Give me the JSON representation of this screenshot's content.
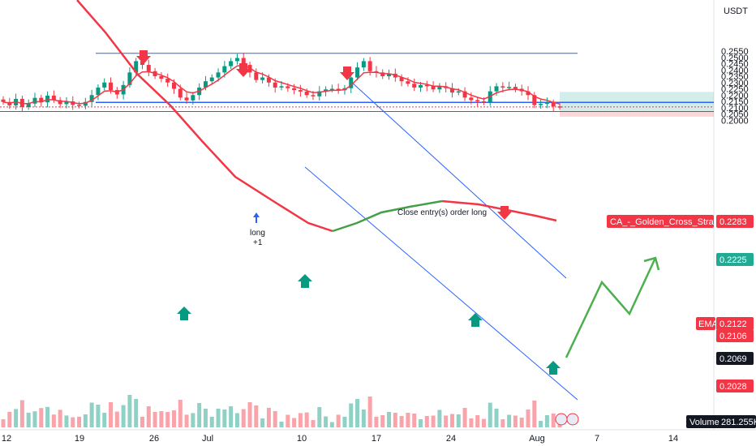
{
  "currency_label": "USDT",
  "price_ticks": [
    "0.2550",
    "0.2500",
    "0.2450",
    "0.2400",
    "0.2350",
    "0.2300",
    "0.2250",
    "0.2200",
    "0.2150",
    "0.2100",
    "0.2050",
    "0.2000"
  ],
  "date_ticks": [
    "12",
    "19",
    "26",
    "Jul",
    "10",
    "17",
    "24",
    "Aug",
    "7",
    "14"
  ],
  "annotations": {
    "long_label": "long",
    "long_qty": "+1",
    "close_label": "Close entry(s) order long"
  },
  "labels": {
    "strategy": {
      "name": "CA_-_Golden_Cross_Strat::Plot",
      "value": "0.2283",
      "color": "#f23645"
    },
    "target": {
      "value": "0.2225",
      "color": "#22ab94"
    },
    "ema": {
      "name": "EMA",
      "value": "0.2122",
      "color": "#f23645"
    },
    "last_price": {
      "value": "0.2106",
      "color": "#f23645"
    },
    "entry": {
      "value": "0.2069",
      "color": "#131722"
    },
    "stop": {
      "value": "0.2028",
      "color": "#f23645"
    },
    "volume": {
      "name": "Volume",
      "value": "281.255K"
    }
  },
  "colors": {
    "up": "#089981",
    "down": "#f23645",
    "ma_red": "#f23645",
    "ma_green": "#43a047",
    "lines": "#2962ff",
    "projection": "#4caf50"
  },
  "chart_data": {
    "type": "candlestick",
    "symbol_quote": "USDT",
    "y_range": [
      0.1995,
      0.2585
    ],
    "series": [
      {
        "name": "close",
        "values": [
          0.2145,
          0.2118,
          0.217,
          0.2105,
          0.2132,
          0.2178,
          0.2142,
          0.2196,
          0.216,
          0.2128,
          0.215,
          0.2122,
          0.2115,
          0.2145,
          0.22,
          0.226,
          0.23,
          0.224,
          0.2205,
          0.228,
          0.238,
          0.247,
          0.244,
          0.239,
          0.235,
          0.233,
          0.23,
          0.225,
          0.218,
          0.2158,
          0.22,
          0.226,
          0.231,
          0.234,
          0.238,
          0.243,
          0.247,
          0.2495,
          0.244,
          0.238,
          0.232,
          0.234,
          0.23,
          0.226,
          0.227,
          0.2255,
          0.224,
          0.2228,
          0.22,
          0.219,
          0.223,
          0.2245,
          0.225,
          0.2238,
          0.2255,
          0.234,
          0.242,
          0.247,
          0.239,
          0.238,
          0.235,
          0.237,
          0.234,
          0.231,
          0.229,
          0.226,
          0.228,
          0.227,
          0.2245,
          0.227,
          0.2255,
          0.222,
          0.223,
          0.218,
          0.216,
          0.215,
          0.2142,
          0.223,
          0.227,
          0.226,
          0.2265,
          0.225,
          0.223,
          0.22,
          0.212,
          0.213,
          0.214,
          0.211,
          0.2106
        ]
      }
    ],
    "ema_value": 0.2122,
    "ma_value": 0.2283,
    "horizontal_levels": [
      0.2532,
      0.2142,
      0.2069
    ],
    "position": {
      "side": "long",
      "entry": 0.2069,
      "target": 0.2225,
      "stop": 0.2028
    },
    "markers": {
      "sell_arrows": 4,
      "buy_arrows": 4
    },
    "last_volume": "281.255K"
  }
}
